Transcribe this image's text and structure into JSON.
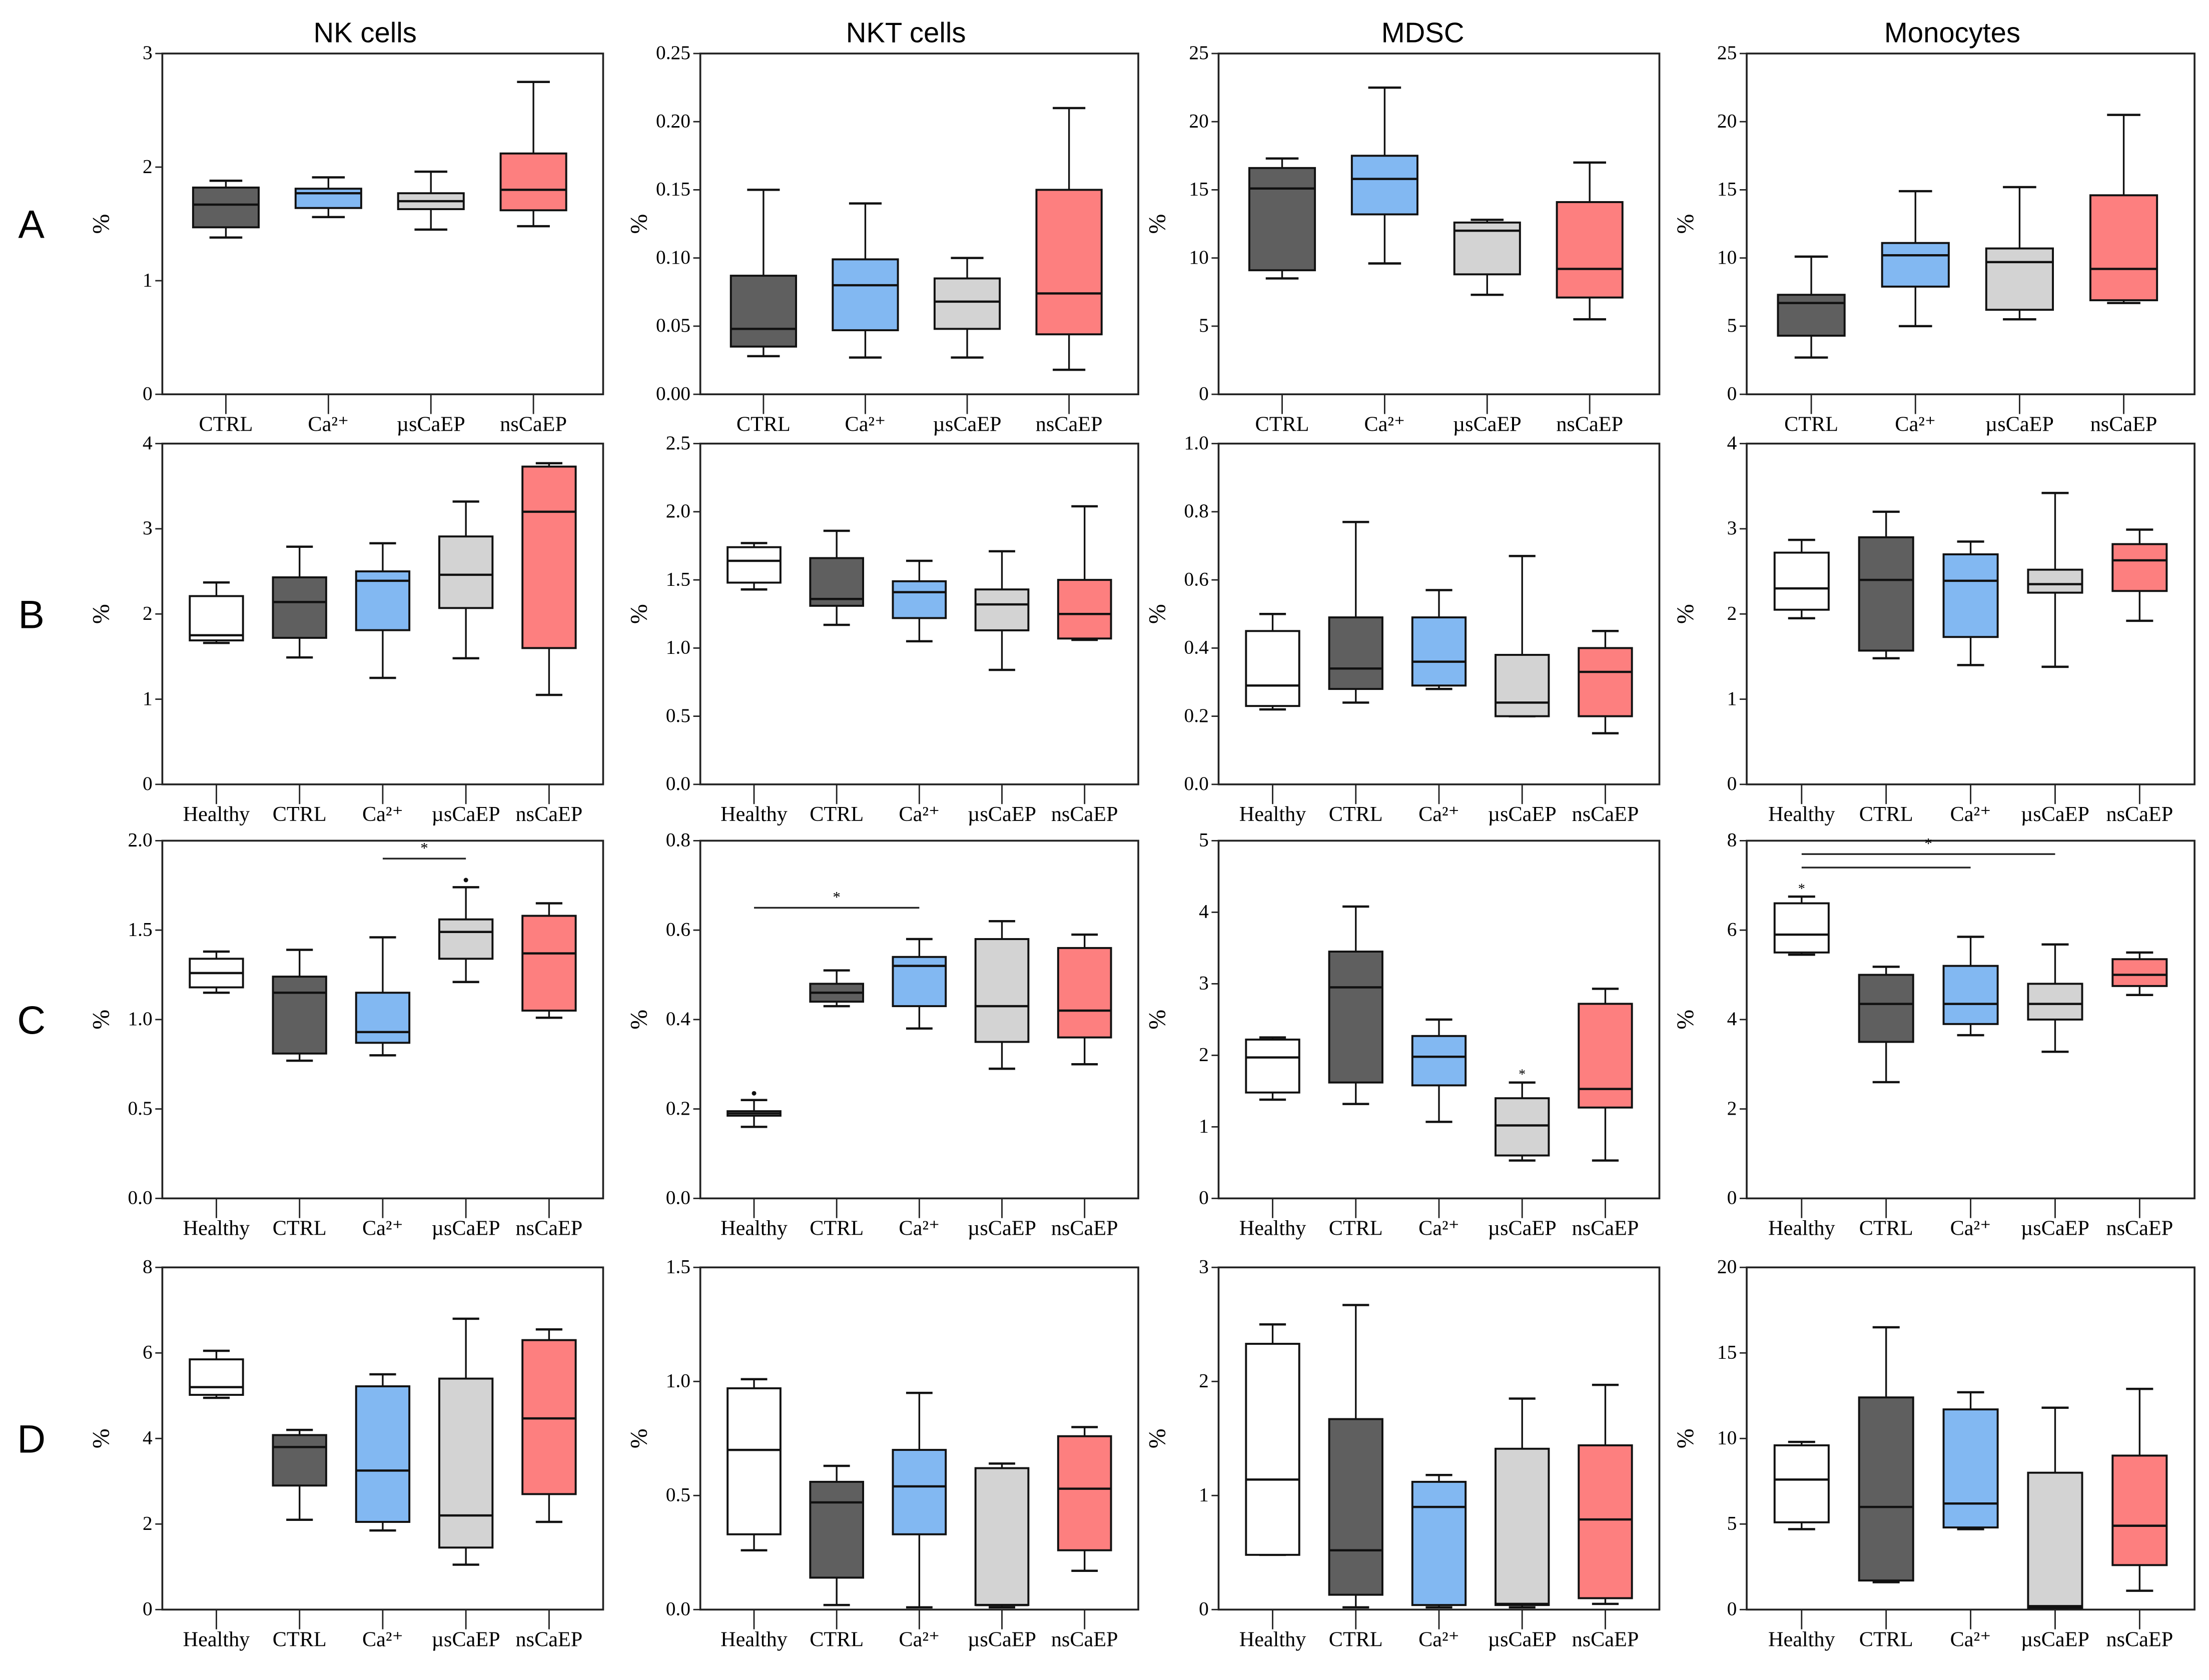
{
  "chart_data": {
    "type": "boxplot",
    "column_titles": [
      "NK cells",
      "NKT cells",
      "MDSC",
      "Monocytes"
    ],
    "row_labels": [
      "A",
      "B",
      "C",
      "D"
    ],
    "ylabel": "%",
    "group_colors": {
      "Healthy": "#ffffff",
      "CTRL": "#5f5f5f",
      "Ca²⁺": "#82b8f2",
      "µsCaEP": "#d3d3d3",
      "nsCaEP": "#fd7f7f"
    },
    "significance_colors": {
      "red": "#e8161b",
      "black": "#000000"
    },
    "box_stats_order": [
      "min",
      "q1",
      "median",
      "q3",
      "max"
    ],
    "panels": [
      [
        {
          "ylim": [
            0,
            3
          ],
          "ticks": [
            "0",
            "1",
            "2",
            "3"
          ],
          "groups": [
            "CTRL",
            "Ca²⁺",
            "µsCaEP",
            "nsCaEP"
          ],
          "boxes": [
            [
              1.38,
              1.47,
              1.67,
              1.82,
              1.88
            ],
            [
              1.56,
              1.64,
              1.77,
              1.81,
              1.91
            ],
            [
              1.45,
              1.63,
              1.7,
              1.77,
              1.96
            ],
            [
              1.48,
              1.62,
              1.8,
              2.12,
              2.75
            ]
          ]
        },
        {
          "ylim": [
            0,
            0.25
          ],
          "ticks": [
            "0.00",
            "0.05",
            "0.10",
            "0.15",
            "0.20",
            "0.25"
          ],
          "groups": [
            "CTRL",
            "Ca²⁺",
            "µsCaEP",
            "nsCaEP"
          ],
          "boxes": [
            [
              0.028,
              0.035,
              0.048,
              0.087,
              0.15
            ],
            [
              0.027,
              0.047,
              0.08,
              0.099,
              0.14
            ],
            [
              0.027,
              0.048,
              0.068,
              0.085,
              0.1
            ],
            [
              0.018,
              0.044,
              0.074,
              0.15,
              0.21
            ]
          ]
        },
        {
          "ylim": [
            0,
            25
          ],
          "ticks": [
            "0",
            "5",
            "10",
            "15",
            "20",
            "25"
          ],
          "groups": [
            "CTRL",
            "Ca²⁺",
            "µsCaEP",
            "nsCaEP"
          ],
          "boxes": [
            [
              8.5,
              9.1,
              15.1,
              16.6,
              17.3
            ],
            [
              9.6,
              13.2,
              15.8,
              17.5,
              22.5
            ],
            [
              7.3,
              8.8,
              12,
              12.6,
              12.8
            ],
            [
              5.5,
              7.1,
              9.2,
              14.1,
              17
            ]
          ]
        },
        {
          "ylim": [
            0,
            25
          ],
          "ticks": [
            "0",
            "5",
            "10",
            "15",
            "20",
            "25"
          ],
          "groups": [
            "CTRL",
            "Ca²⁺",
            "µsCaEP",
            "nsCaEP"
          ],
          "boxes": [
            [
              2.7,
              4.3,
              6.7,
              7.3,
              10.1
            ],
            [
              5,
              7.9,
              10.2,
              11.1,
              14.9
            ],
            [
              5.5,
              6.2,
              9.7,
              10.7,
              15.2
            ],
            [
              6.7,
              6.9,
              9.2,
              14.6,
              20.5
            ]
          ]
        }
      ],
      [
        {
          "ylim": [
            0,
            4
          ],
          "ticks": [
            "0",
            "1",
            "2",
            "3",
            "4"
          ],
          "groups": [
            "Healthy",
            "CTRL",
            "Ca²⁺",
            "µsCaEP",
            "nsCaEP"
          ],
          "boxes": [
            [
              1.66,
              1.69,
              1.75,
              2.21,
              2.37
            ],
            [
              1.49,
              1.72,
              2.14,
              2.43,
              2.79
            ],
            [
              1.25,
              1.81,
              2.39,
              2.5,
              2.83
            ],
            [
              1.48,
              2.07,
              2.46,
              2.91,
              3.32
            ],
            [
              1.05,
              1.6,
              3.2,
              3.73,
              3.77
            ]
          ]
        },
        {
          "ylim": [
            0,
            2.5
          ],
          "ticks": [
            "0.0",
            "0.5",
            "1.0",
            "1.5",
            "2.0",
            "2.5"
          ],
          "groups": [
            "Healthy",
            "CTRL",
            "Ca²⁺",
            "µsCaEP",
            "nsCaEP"
          ],
          "boxes": [
            [
              1.43,
              1.48,
              1.64,
              1.74,
              1.77
            ],
            [
              1.17,
              1.31,
              1.36,
              1.66,
              1.86
            ],
            [
              1.05,
              1.22,
              1.41,
              1.49,
              1.64
            ],
            [
              0.84,
              1.13,
              1.32,
              1.43,
              1.71
            ],
            [
              1.06,
              1.07,
              1.25,
              1.5,
              2.04
            ]
          ]
        },
        {
          "ylim": [
            0,
            1
          ],
          "ticks": [
            "0.0",
            "0.2",
            "0.4",
            "0.6",
            "0.8",
            "1.0"
          ],
          "groups": [
            "Healthy",
            "CTRL",
            "Ca²⁺",
            "µsCaEP",
            "nsCaEP"
          ],
          "boxes": [
            [
              0.22,
              0.23,
              0.29,
              0.45,
              0.5
            ],
            [
              0.24,
              0.28,
              0.34,
              0.49,
              0.77
            ],
            [
              0.28,
              0.29,
              0.36,
              0.49,
              0.57
            ],
            [
              0.2,
              0.2,
              0.24,
              0.38,
              0.67
            ],
            [
              0.15,
              0.2,
              0.33,
              0.4,
              0.45
            ]
          ]
        },
        {
          "ylim": [
            0,
            4
          ],
          "ticks": [
            "0",
            "1",
            "2",
            "3",
            "4"
          ],
          "groups": [
            "Healthy",
            "CTRL",
            "Ca²⁺",
            "µsCaEP",
            "nsCaEP"
          ],
          "boxes": [
            [
              1.95,
              2.05,
              2.3,
              2.72,
              2.87
            ],
            [
              1.48,
              1.57,
              2.4,
              2.9,
              3.2
            ],
            [
              1.4,
              1.73,
              2.39,
              2.7,
              2.85
            ],
            [
              1.38,
              2.25,
              2.35,
              2.52,
              3.42
            ],
            [
              1.92,
              2.27,
              2.63,
              2.82,
              2.99
            ]
          ]
        }
      ],
      [
        {
          "ylim": [
            0,
            2
          ],
          "ticks": [
            "0.0",
            "0.5",
            "1.0",
            "1.5",
            "2.0"
          ],
          "groups": [
            "Healthy",
            "CTRL",
            "Ca²⁺",
            "µsCaEP",
            "nsCaEP"
          ],
          "boxes": [
            [
              1.15,
              1.18,
              1.26,
              1.34,
              1.38
            ],
            [
              0.77,
              0.81,
              1.15,
              1.24,
              1.39
            ],
            [
              0.8,
              0.87,
              0.93,
              1.15,
              1.46
            ],
            [
              1.21,
              1.34,
              1.49,
              1.56,
              1.74
            ],
            [
              1.01,
              1.05,
              1.37,
              1.58,
              1.65
            ]
          ],
          "outliers": [
            {
              "group": 3,
              "value": 1.78
            }
          ],
          "significance": [
            {
              "from": 2,
              "to": 3,
              "y": 1.9,
              "label": "*",
              "color": "red"
            }
          ]
        },
        {
          "ylim": [
            0,
            0.8
          ],
          "ticks": [
            "0.0",
            "0.2",
            "0.4",
            "0.6",
            "0.8"
          ],
          "groups": [
            "Healthy",
            "CTRL",
            "Ca²⁺",
            "µsCaEP",
            "nsCaEP"
          ],
          "boxes": [
            [
              0.16,
              0.185,
              0.19,
              0.195,
              0.22
            ],
            [
              0.43,
              0.44,
              0.46,
              0.48,
              0.51
            ],
            [
              0.38,
              0.43,
              0.52,
              0.54,
              0.58
            ],
            [
              0.29,
              0.35,
              0.43,
              0.58,
              0.62
            ],
            [
              0.3,
              0.36,
              0.42,
              0.56,
              0.59
            ]
          ],
          "outliers": [
            {
              "group": 0,
              "value": 0.235
            }
          ],
          "significance": [
            {
              "from": 0,
              "to": 2,
              "y": 0.65,
              "label": "*",
              "color": "red"
            }
          ]
        },
        {
          "ylim": [
            0,
            5
          ],
          "ticks": [
            "0",
            "1",
            "2",
            "3",
            "4",
            "5"
          ],
          "groups": [
            "Healthy",
            "CTRL",
            "Ca²⁺",
            "µsCaEP",
            "nsCaEP"
          ],
          "boxes": [
            [
              1.38,
              1.48,
              1.97,
              2.22,
              2.25
            ],
            [
              1.32,
              1.62,
              2.95,
              3.45,
              4.08
            ],
            [
              1.07,
              1.58,
              1.98,
              2.27,
              2.5
            ],
            [
              0.53,
              0.6,
              1.02,
              1.4,
              1.62
            ],
            [
              0.53,
              1.27,
              1.53,
              2.72,
              2.93
            ]
          ],
          "stars": [
            {
              "group": 3,
              "value": 1.75,
              "label": "*",
              "color": "black"
            }
          ]
        },
        {
          "ylim": [
            0,
            8
          ],
          "ticks": [
            "0",
            "2",
            "4",
            "6",
            "8"
          ],
          "groups": [
            "Healthy",
            "CTRL",
            "Ca²⁺",
            "µsCaEP",
            "nsCaEP"
          ],
          "boxes": [
            [
              5.45,
              5.5,
              5.9,
              6.6,
              6.75
            ],
            [
              2.6,
              3.5,
              4.35,
              5,
              5.18
            ],
            [
              3.65,
              3.9,
              4.35,
              5.2,
              5.85
            ],
            [
              3.28,
              4,
              4.35,
              4.8,
              5.68
            ],
            [
              4.55,
              4.75,
              5,
              5.35,
              5.5
            ]
          ],
          "stars": [
            {
              "group": 0,
              "value": 6.95,
              "label": "*",
              "color": "black"
            }
          ],
          "significance": [
            {
              "from": 0,
              "to": 2,
              "y": 7.4,
              "label": "",
              "color": "black"
            },
            {
              "from": 0,
              "to": 3,
              "y": 7.7,
              "label": "*",
              "color": "red"
            }
          ]
        }
      ],
      [
        {
          "ylim": [
            0,
            8
          ],
          "ticks": [
            "0",
            "2",
            "4",
            "6",
            "8"
          ],
          "groups": [
            "Healthy",
            "CTRL",
            "Ca²⁺",
            "µsCaEP",
            "nsCaEP"
          ],
          "boxes": [
            [
              4.95,
              5.02,
              5.2,
              5.85,
              6.05
            ],
            [
              2.1,
              2.9,
              3.8,
              4.08,
              4.2
            ],
            [
              1.85,
              2.05,
              3.25,
              5.22,
              5.5
            ],
            [
              1.05,
              1.45,
              2.2,
              5.4,
              6.8
            ],
            [
              2.05,
              2.7,
              4.47,
              6.3,
              6.55
            ]
          ]
        },
        {
          "ylim": [
            0,
            1.5
          ],
          "ticks": [
            "0.0",
            "0.5",
            "1.0",
            "1.5"
          ],
          "groups": [
            "Healthy",
            "CTRL",
            "Ca²⁺",
            "µsCaEP",
            "nsCaEP"
          ],
          "boxes": [
            [
              0.26,
              0.33,
              0.7,
              0.97,
              1.01
            ],
            [
              0.02,
              0.14,
              0.47,
              0.56,
              0.63
            ],
            [
              0.01,
              0.33,
              0.54,
              0.7,
              0.95
            ],
            [
              0.01,
              0.02,
              0.02,
              0.62,
              0.64
            ],
            [
              0.17,
              0.26,
              0.53,
              0.76,
              0.8
            ]
          ]
        },
        {
          "ylim": [
            0,
            3
          ],
          "ticks": [
            "0",
            "1",
            "2",
            "3"
          ],
          "groups": [
            "Healthy",
            "CTRL",
            "Ca²⁺",
            "µsCaEP",
            "nsCaEP"
          ],
          "boxes": [
            [
              0.48,
              0.48,
              1.14,
              2.33,
              2.5
            ],
            [
              0.02,
              0.13,
              0.52,
              1.67,
              2.67
            ],
            [
              0.02,
              0.04,
              0.9,
              1.12,
              1.18
            ],
            [
              0.02,
              0.04,
              0.05,
              1.41,
              1.85
            ],
            [
              0.05,
              0.1,
              0.79,
              1.44,
              1.97
            ]
          ]
        },
        {
          "ylim": [
            0,
            20
          ],
          "ticks": [
            "0",
            "5",
            "10",
            "15",
            "20"
          ],
          "groups": [
            "Healthy",
            "CTRL",
            "Ca²⁺",
            "µsCaEP",
            "nsCaEP"
          ],
          "boxes": [
            [
              4.7,
              5.1,
              7.6,
              9.6,
              9.8
            ],
            [
              1.6,
              1.7,
              6,
              12.4,
              16.5
            ],
            [
              4.7,
              4.8,
              6.2,
              11.7,
              12.7
            ],
            [
              0.1,
              0.1,
              0.2,
              8,
              11.8
            ],
            [
              1.1,
              2.6,
              4.9,
              9,
              12.9
            ]
          ]
        }
      ]
    ]
  }
}
